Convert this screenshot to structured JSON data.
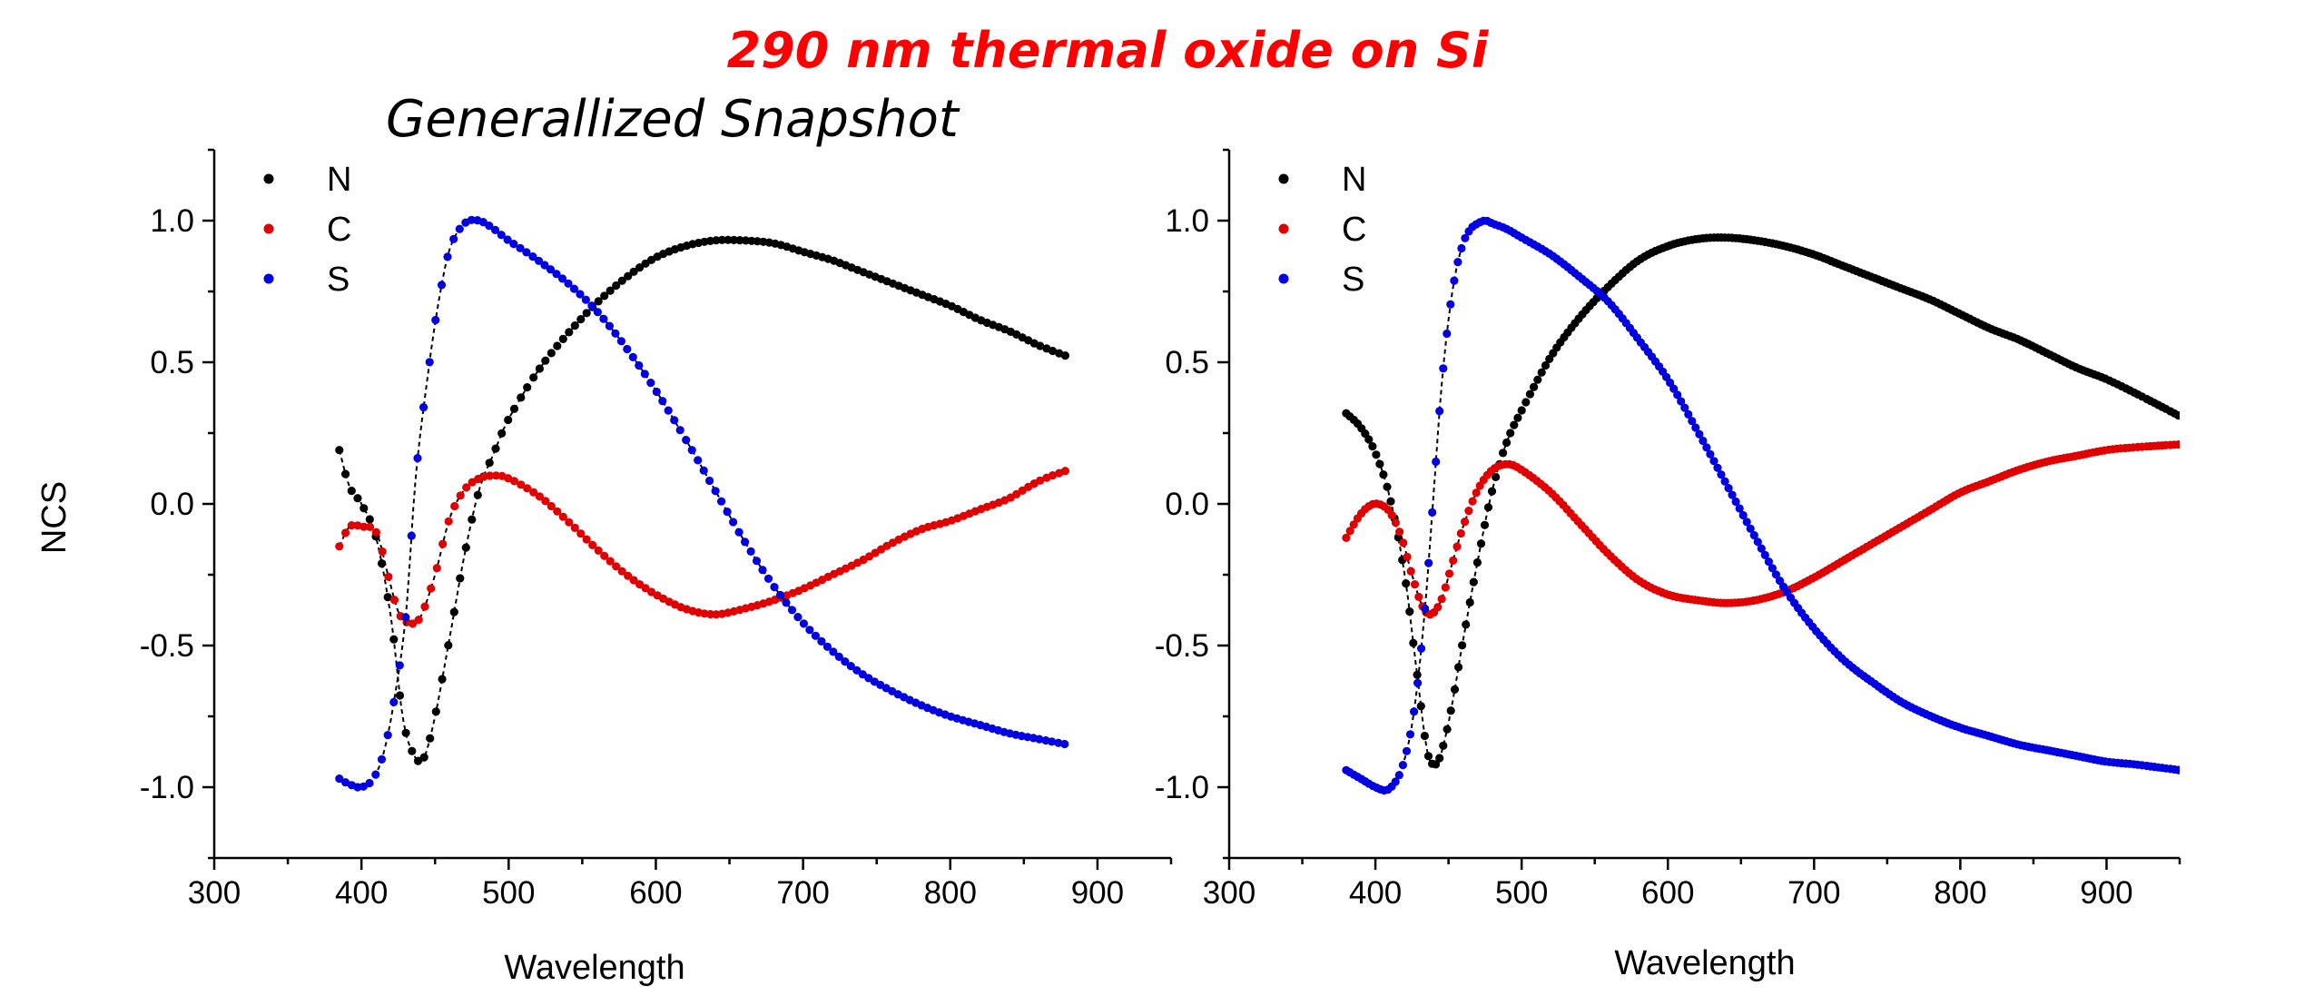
{
  "figure": {
    "title": "290 nm thermal oxide on Si",
    "title_color": "#ff0000"
  },
  "chart_data": [
    {
      "type": "scatter",
      "title": "Generallized Snapshot",
      "xlabel": "Wavelength",
      "ylabel": "NCS",
      "xlim": [
        300,
        950
      ],
      "ylim": [
        -1.25,
        1.25
      ],
      "xticks": [
        "300",
        "400",
        "500",
        "600",
        "700",
        "800",
        "900"
      ],
      "yticks": [
        "-1.0",
        "-0.5",
        "0.0",
        "0.5",
        "1.0"
      ],
      "legend": "top-left",
      "fit_line": "dashed black",
      "series": [
        {
          "name": "N",
          "color": "#000000",
          "x": [
            385,
            392,
            400,
            410,
            420,
            428,
            435,
            442,
            450,
            460,
            470,
            480,
            490,
            500,
            520,
            540,
            560,
            580,
            600,
            620,
            640,
            660,
            680,
            700,
            720,
            740,
            760,
            780,
            800,
            820,
            840,
            860,
            880
          ],
          "y": [
            0.19,
            0.06,
            0.0,
            -0.12,
            -0.4,
            -0.75,
            -0.88,
            -0.9,
            -0.75,
            -0.47,
            -0.18,
            0.05,
            0.18,
            0.3,
            0.47,
            0.6,
            0.71,
            0.8,
            0.87,
            0.91,
            0.93,
            0.93,
            0.92,
            0.89,
            0.86,
            0.82,
            0.78,
            0.74,
            0.7,
            0.65,
            0.61,
            0.56,
            0.52
          ]
        },
        {
          "name": "C",
          "color": "#e00000",
          "x": [
            385,
            392,
            400,
            410,
            418,
            425,
            432,
            440,
            450,
            460,
            470,
            480,
            490,
            500,
            520,
            540,
            560,
            580,
            600,
            620,
            640,
            660,
            680,
            700,
            720,
            740,
            760,
            780,
            800,
            820,
            840,
            860,
            880
          ],
          "y": [
            -0.15,
            -0.08,
            -0.08,
            -0.1,
            -0.25,
            -0.38,
            -0.42,
            -0.4,
            -0.25,
            -0.05,
            0.05,
            0.09,
            0.1,
            0.09,
            0.03,
            -0.06,
            -0.16,
            -0.25,
            -0.32,
            -0.37,
            -0.39,
            -0.37,
            -0.34,
            -0.3,
            -0.25,
            -0.2,
            -0.14,
            -0.09,
            -0.06,
            -0.02,
            0.02,
            0.08,
            0.12
          ]
        },
        {
          "name": "S",
          "color": "#0000e0",
          "x": [
            385,
            392,
            400,
            408,
            415,
            422,
            430,
            437,
            445,
            452,
            460,
            470,
            480,
            490,
            500,
            520,
            540,
            560,
            580,
            600,
            620,
            640,
            660,
            680,
            700,
            720,
            740,
            760,
            780,
            800,
            820,
            840,
            860,
            880
          ],
          "y": [
            -0.97,
            -0.99,
            -1.0,
            -0.97,
            -0.88,
            -0.7,
            -0.4,
            0.1,
            0.45,
            0.7,
            0.9,
            0.99,
            1.0,
            0.97,
            0.93,
            0.86,
            0.78,
            0.68,
            0.55,
            0.4,
            0.23,
            0.05,
            -0.13,
            -0.29,
            -0.42,
            -0.52,
            -0.6,
            -0.66,
            -0.71,
            -0.75,
            -0.78,
            -0.81,
            -0.83,
            -0.85
          ]
        }
      ]
    },
    {
      "type": "scatter",
      "title": "",
      "xlabel": "Wavelength",
      "ylabel": "",
      "xlim": [
        300,
        950
      ],
      "ylim": [
        -1.25,
        1.25
      ],
      "xticks": [
        "300",
        "400",
        "500",
        "600",
        "700",
        "800",
        "900"
      ],
      "yticks": [
        "-1.0",
        "-0.5",
        "0.0",
        "0.5",
        "1.0"
      ],
      "legend": "top-left",
      "fit_line": "dashed black",
      "series": [
        {
          "name": "N",
          "color": "#000000",
          "x": [
            380,
            390,
            400,
            410,
            420,
            428,
            435,
            440,
            445,
            452,
            460,
            470,
            480,
            490,
            500,
            520,
            540,
            560,
            580,
            600,
            620,
            640,
            660,
            680,
            700,
            720,
            740,
            760,
            780,
            800,
            820,
            840,
            860,
            880,
            900,
            920,
            950
          ],
          "y": [
            0.32,
            0.27,
            0.18,
            0.02,
            -0.25,
            -0.58,
            -0.86,
            -0.92,
            -0.88,
            -0.72,
            -0.48,
            -0.2,
            0.05,
            0.22,
            0.33,
            0.52,
            0.66,
            0.77,
            0.86,
            0.91,
            0.935,
            0.94,
            0.93,
            0.91,
            0.88,
            0.84,
            0.8,
            0.76,
            0.72,
            0.67,
            0.62,
            0.58,
            0.53,
            0.48,
            0.44,
            0.39,
            0.31
          ]
        },
        {
          "name": "C",
          "color": "#e00000",
          "x": [
            380,
            388,
            395,
            402,
            410,
            418,
            425,
            432,
            438,
            445,
            452,
            460,
            470,
            480,
            490,
            500,
            520,
            540,
            560,
            580,
            600,
            620,
            640,
            660,
            680,
            700,
            720,
            740,
            760,
            780,
            800,
            820,
            840,
            860,
            880,
            900,
            920,
            950
          ],
          "y": [
            -0.12,
            -0.05,
            -0.01,
            0.0,
            -0.03,
            -0.12,
            -0.25,
            -0.36,
            -0.39,
            -0.34,
            -0.22,
            -0.08,
            0.05,
            0.12,
            0.14,
            0.12,
            0.04,
            -0.07,
            -0.18,
            -0.27,
            -0.32,
            -0.34,
            -0.35,
            -0.34,
            -0.31,
            -0.26,
            -0.2,
            -0.14,
            -0.08,
            -0.02,
            0.04,
            0.08,
            0.12,
            0.15,
            0.17,
            0.19,
            0.2,
            0.21
          ]
        },
        {
          "name": "S",
          "color": "#0000e0",
          "x": [
            380,
            390,
            400,
            408,
            415,
            420,
            425,
            430,
            435,
            440,
            445,
            450,
            455,
            460,
            465,
            470,
            475,
            480,
            490,
            500,
            520,
            540,
            560,
            580,
            600,
            620,
            640,
            660,
            680,
            700,
            720,
            740,
            760,
            780,
            800,
            820,
            840,
            860,
            880,
            900,
            920,
            950
          ],
          "y": [
            -0.94,
            -0.97,
            -1.0,
            -1.01,
            -0.97,
            -0.9,
            -0.78,
            -0.58,
            -0.3,
            0.05,
            0.4,
            0.65,
            0.82,
            0.92,
            0.97,
            0.99,
            1.0,
            0.99,
            0.97,
            0.94,
            0.88,
            0.8,
            0.71,
            0.58,
            0.44,
            0.26,
            0.07,
            -0.12,
            -0.3,
            -0.44,
            -0.55,
            -0.63,
            -0.7,
            -0.75,
            -0.79,
            -0.82,
            -0.85,
            -0.87,
            -0.89,
            -0.91,
            -0.92,
            -0.94
          ]
        }
      ]
    }
  ]
}
